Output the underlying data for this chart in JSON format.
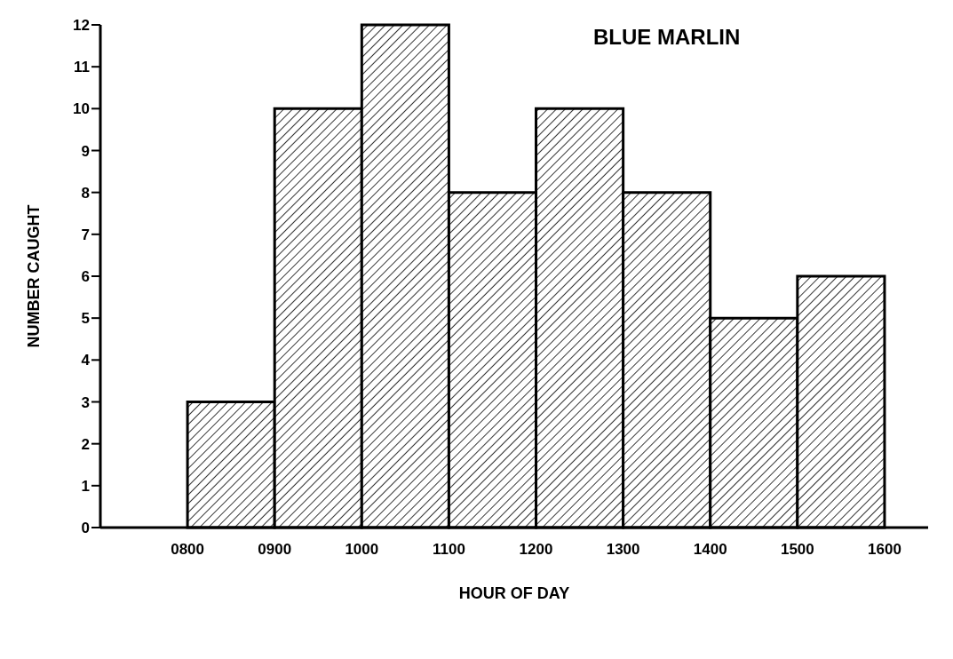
{
  "chart_data": {
    "type": "histogram",
    "title": "BLUE MARLIN",
    "xlabel": "HOUR OF DAY",
    "ylabel": "NUMBER CAUGHT",
    "bins": [
      800,
      900,
      1000,
      1100,
      1200,
      1300,
      1400,
      1500,
      1600
    ],
    "values": [
      3,
      10,
      12,
      8,
      10,
      8,
      5,
      6
    ],
    "color": "#000000",
    "xlim": [
      700,
      1650
    ],
    "xticks": [
      {
        "value": 800,
        "label": "0800"
      },
      {
        "value": 900,
        "label": "0900"
      },
      1000,
      1100,
      1200,
      1300,
      1400,
      1500,
      1600
    ],
    "ylim": [
      0,
      12
    ],
    "yticks": [
      0,
      1,
      2,
      3,
      4,
      5,
      6,
      7,
      8,
      9,
      10,
      11,
      12
    ],
    "grid": false
  }
}
